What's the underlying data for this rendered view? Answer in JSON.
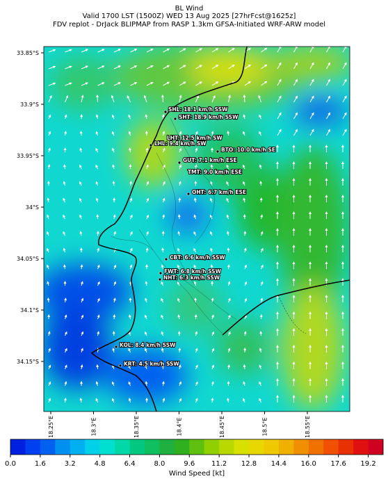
{
  "header": {
    "title": "BL Wind",
    "valid": "Valid 1700 LST (1500Z) WED 13 Aug 2025 [27hrFcst@1625z]",
    "source": "FDV replot - DrJack BLIPMAP from RASP 1.3km GFSA-Initiated WRF-ARW model"
  },
  "lat_labels": [
    "33.85°S",
    "33.9°S",
    "33.95°S",
    "34°S",
    "34.05°S",
    "34.1°S",
    "34.15°S"
  ],
  "lon_labels": [
    "18.25°E",
    "18.3°E",
    "18.35°E",
    "18.4°E",
    "18.45°E",
    "18.5°E",
    "18.55°E"
  ],
  "stations": [
    "SHL: 18.1 km/h SSW",
    "SHT: 18.9 km/h SSW",
    "LHT: 12.5 km/h SW",
    "LHL: 9.4 km/h SW",
    "BTO: 10.0 km/h SE",
    "GUT: 7.1 km/h ESE",
    "TMT: 9.0 km/h ESE",
    "OHT: 6.7 km/h ESE",
    "CBT: 6.6 km/h SSW",
    "FWT: 6.8 km/h SSW",
    "NHT: 6.3 km/h SSW",
    "KOL: 8.4 km/h SSW",
    "KRT: 4.5 km/h SSW"
  ],
  "colorbar": {
    "label": "Wind Speed [kt]",
    "ticks": [
      "0.0",
      "1.6",
      "3.2",
      "4.8",
      "6.4",
      "8.0",
      "9.6",
      "11.2",
      "12.8",
      "14.4",
      "16.0",
      "17.6",
      "19.2"
    ],
    "colors": [
      "#0020e0",
      "#0040f0",
      "#0060f0",
      "#0090f0",
      "#00b0f0",
      "#00d0e8",
      "#00e0d0",
      "#00d8a8",
      "#00c880",
      "#10c060",
      "#20b040",
      "#30b020",
      "#60c010",
      "#90d000",
      "#b8d800",
      "#d8e000",
      "#e8d800",
      "#f0c800",
      "#f0b000",
      "#f09000",
      "#f07000",
      "#f05000",
      "#e83000",
      "#e01010",
      "#d00020"
    ]
  }
}
